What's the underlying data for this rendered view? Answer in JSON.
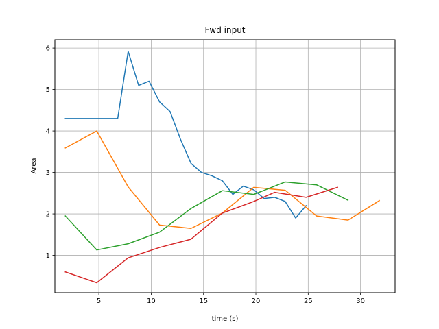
{
  "chart_data": {
    "type": "line",
    "title": "Fwd input",
    "xlabel": "time (s)",
    "ylabel": "Area",
    "xlim": [
      0.8,
      33.3
    ],
    "ylim": [
      0.1,
      6.2
    ],
    "xticks": [
      5,
      10,
      15,
      20,
      25,
      30
    ],
    "yticks": [
      1,
      2,
      3,
      4,
      5,
      6
    ],
    "grid": true,
    "legend": "none",
    "series": [
      {
        "color": "#1f77b4",
        "points": [
          [
            1.8,
            4.3
          ],
          [
            4.8,
            4.3
          ],
          [
            6.8,
            4.3
          ],
          [
            7.8,
            5.92
          ],
          [
            8.8,
            5.1
          ],
          [
            9.8,
            5.2
          ],
          [
            10.8,
            4.7
          ],
          [
            11.8,
            4.47
          ],
          [
            12.8,
            3.8
          ],
          [
            13.8,
            3.22
          ],
          [
            14.8,
            3.0
          ],
          [
            15.8,
            2.92
          ],
          [
            16.8,
            2.8
          ],
          [
            17.8,
            2.47
          ],
          [
            18.8,
            2.67
          ],
          [
            19.8,
            2.58
          ],
          [
            20.8,
            2.37
          ],
          [
            21.8,
            2.4
          ],
          [
            22.8,
            2.3
          ],
          [
            23.8,
            1.9
          ],
          [
            24.8,
            2.2
          ]
        ]
      },
      {
        "color": "#ff7f0e",
        "points": [
          [
            1.8,
            3.59
          ],
          [
            4.8,
            4.0
          ],
          [
            7.8,
            2.65
          ],
          [
            10.8,
            1.73
          ],
          [
            13.8,
            1.65
          ],
          [
            16.8,
            2.02
          ],
          [
            19.8,
            2.64
          ],
          [
            22.8,
            2.57
          ],
          [
            25.8,
            1.95
          ],
          [
            28.8,
            1.85
          ],
          [
            31.8,
            2.32
          ]
        ]
      },
      {
        "color": "#2ca02c",
        "points": [
          [
            1.8,
            1.95
          ],
          [
            4.8,
            1.13
          ],
          [
            7.8,
            1.28
          ],
          [
            10.8,
            1.56
          ],
          [
            13.8,
            2.13
          ],
          [
            16.8,
            2.56
          ],
          [
            19.8,
            2.47
          ],
          [
            22.8,
            2.77
          ],
          [
            25.8,
            2.7
          ],
          [
            28.8,
            2.33
          ]
        ]
      },
      {
        "color": "#d62728",
        "points": [
          [
            1.8,
            0.6
          ],
          [
            4.8,
            0.34
          ],
          [
            7.8,
            0.94
          ],
          [
            10.8,
            1.19
          ],
          [
            13.8,
            1.39
          ],
          [
            16.8,
            2.02
          ],
          [
            19.8,
            2.3
          ],
          [
            21.8,
            2.52
          ],
          [
            24.8,
            2.4
          ],
          [
            27.8,
            2.64
          ]
        ]
      }
    ]
  }
}
